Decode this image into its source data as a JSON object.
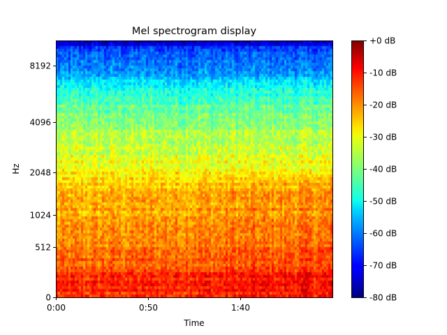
{
  "chart_data": {
    "type": "heatmap",
    "title": "Mel spectrogram display",
    "xlabel": "Time",
    "ylabel": "Hz",
    "x_ticks": [
      {
        "label": "0:00",
        "seconds": 0
      },
      {
        "label": "0:50",
        "seconds": 50
      },
      {
        "label": "1:40",
        "seconds": 100
      }
    ],
    "xlim_seconds": [
      0,
      150
    ],
    "y_ticks": [
      {
        "label": "0",
        "hz": 0
      },
      {
        "label": "512",
        "hz": 512
      },
      {
        "label": "1024",
        "hz": 1024
      },
      {
        "label": "2048",
        "hz": 2048
      },
      {
        "label": "4096",
        "hz": 4096
      },
      {
        "label": "8192",
        "hz": 8192
      }
    ],
    "y_scale": "mel",
    "ylim_hz": [
      0,
      11025
    ],
    "colorbar": {
      "colormap": "jet",
      "range_db": [
        -80,
        0
      ],
      "ticks": [
        {
          "label": "+0 dB",
          "value": 0
        },
        {
          "label": "-10 dB",
          "value": -10
        },
        {
          "label": "-20 dB",
          "value": -20
        },
        {
          "label": "-30 dB",
          "value": -30
        },
        {
          "label": "-40 dB",
          "value": -40
        },
        {
          "label": "-50 dB",
          "value": -50
        },
        {
          "label": "-60 dB",
          "value": -60
        },
        {
          "label": "-70 dB",
          "value": -70
        },
        {
          "label": "-80 dB",
          "value": -80
        }
      ]
    },
    "band_profile_db": [
      {
        "hz": 0,
        "db": -16
      },
      {
        "hz": 120,
        "db": -12
      },
      {
        "hz": 250,
        "db": -17
      },
      {
        "hz": 512,
        "db": -21
      },
      {
        "hz": 1024,
        "db": -23
      },
      {
        "hz": 1500,
        "db": -25
      },
      {
        "hz": 2048,
        "db": -30
      },
      {
        "hz": 3000,
        "db": -35
      },
      {
        "hz": 4096,
        "db": -38
      },
      {
        "hz": 5500,
        "db": -45
      },
      {
        "hz": 7000,
        "db": -55
      },
      {
        "hz": 8192,
        "db": -60
      },
      {
        "hz": 10000,
        "db": -64
      },
      {
        "hz": 11025,
        "db": -78
      }
    ]
  }
}
